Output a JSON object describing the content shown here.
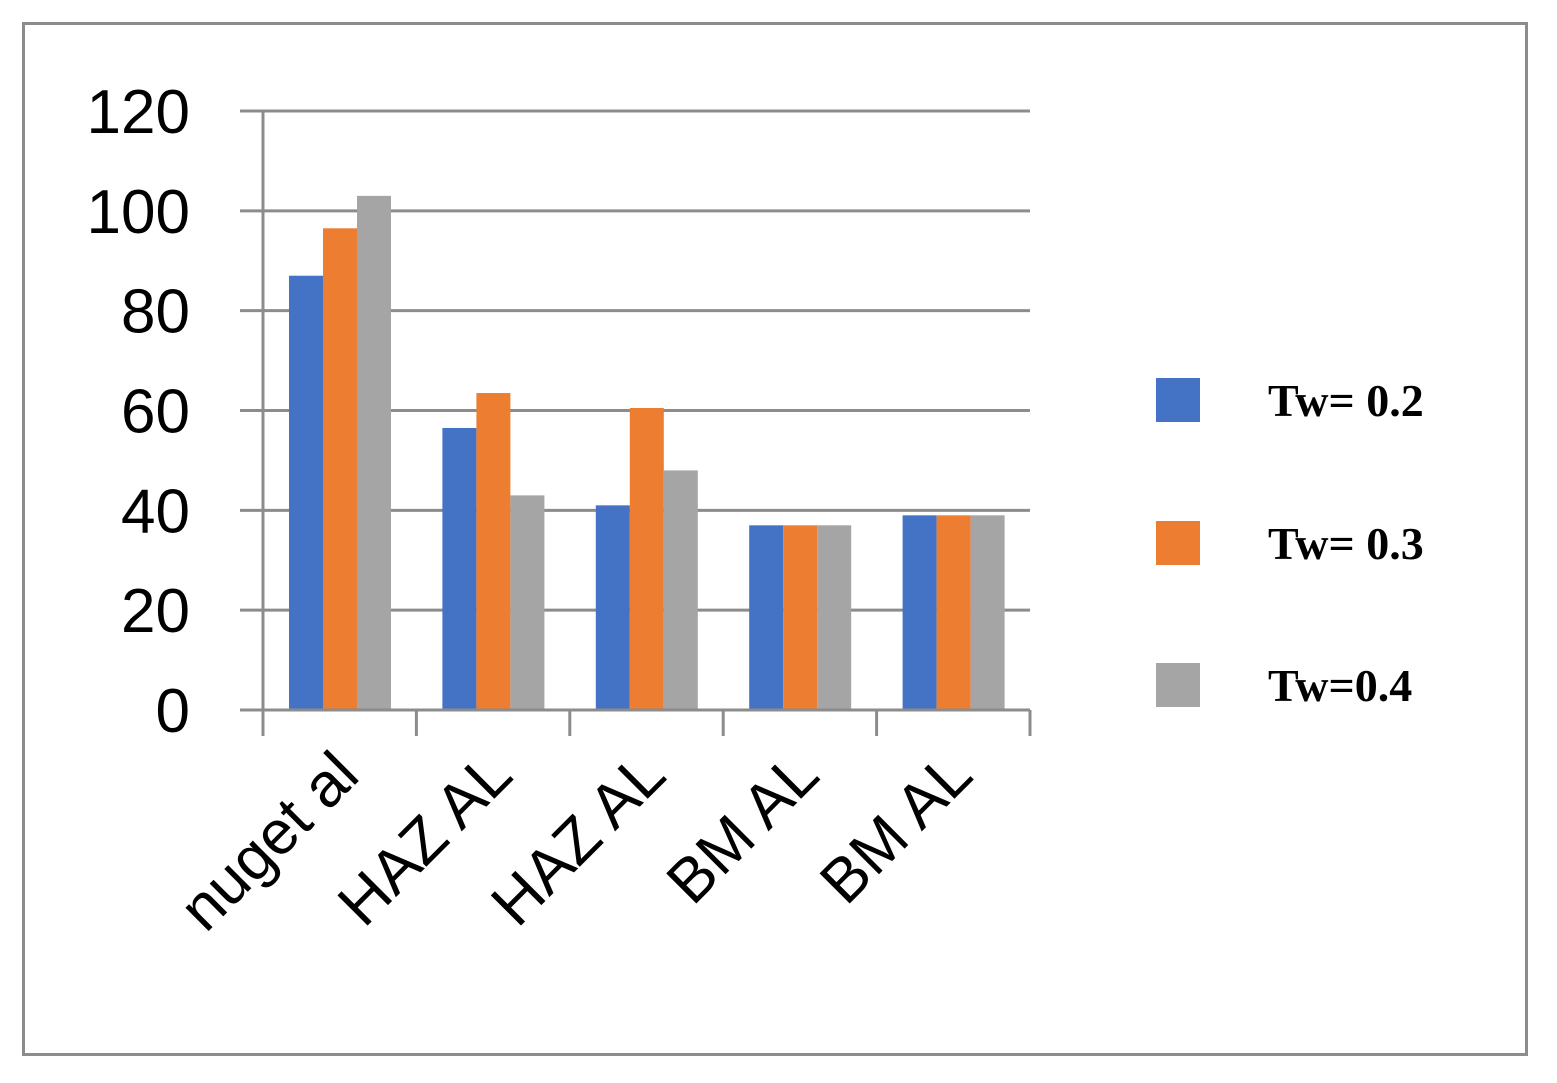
{
  "chart_data": {
    "type": "bar",
    "title": "",
    "xlabel": "",
    "ylabel": "",
    "categories": [
      "nuget al",
      "HAZ AL",
      "HAZ AL",
      "BM AL",
      "BM AL"
    ],
    "series": [
      {
        "name": "Tw= 0.2",
        "color": "#4472c4",
        "values": [
          87,
          56.5,
          41,
          37,
          39
        ]
      },
      {
        "name": "Tw= 0.3",
        "color": "#ed7d31",
        "values": [
          96.5,
          63.5,
          60.5,
          37,
          39
        ]
      },
      {
        "name": "Tw=0.4",
        "color": "#a5a5a5",
        "values": [
          103,
          43,
          48,
          37,
          39
        ]
      }
    ],
    "ylim": [
      0,
      120
    ],
    "yticks": [
      "0",
      "20",
      "40",
      "60",
      "80",
      "100",
      "120"
    ],
    "grid": true,
    "legend_position": "right"
  }
}
